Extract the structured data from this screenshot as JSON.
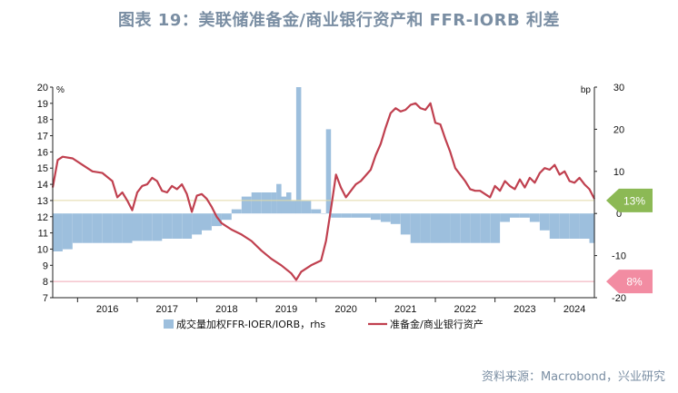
{
  "title": "图表 19：美联储准备金/商业银行资产和 FFR-IORB 利差",
  "source": "资料来源：Macrobond，兴业研究",
  "colors": {
    "bars": "#9dbfdd",
    "line": "#c0404f",
    "badge_13": "#8cb955",
    "badge_8": "#f28ca2",
    "ref_13": "#e2d9a6",
    "ref_8": "#f1a8b5"
  },
  "badges": {
    "b13": "13%",
    "b8": "8%"
  },
  "chart_data": {
    "type": "bar",
    "title": "",
    "left_axis": {
      "unit": "%",
      "min": 7,
      "max": 20,
      "ticks": [
        7,
        8,
        9,
        10,
        11,
        12,
        13,
        14,
        15,
        16,
        17,
        18,
        19,
        20
      ]
    },
    "right_axis": {
      "unit": "bp",
      "min": -20,
      "max": 30,
      "ticks": [
        -20,
        -10,
        0,
        10,
        20,
        30
      ]
    },
    "x_axis": {
      "start": "2015-08",
      "end": "2024-09",
      "labels": [
        "2016",
        "2017",
        "2018",
        "2019",
        "2020",
        "2021",
        "2022",
        "2023",
        "2024"
      ]
    },
    "reference_lines": [
      {
        "axis": "left",
        "value": 13,
        "label": "13%"
      },
      {
        "axis": "left",
        "value": 8,
        "label": "8%"
      }
    ],
    "series": [
      {
        "name": "成交量加权FFR-IOER/IORB，rhs",
        "type": "bar",
        "axis": "right",
        "points": [
          [
            "2015-08",
            -9
          ],
          [
            "2015-10",
            -8.5
          ],
          [
            "2015-12",
            -7
          ],
          [
            "2016-02",
            -7
          ],
          [
            "2016-04",
            -7
          ],
          [
            "2016-06",
            -7
          ],
          [
            "2016-08",
            -7
          ],
          [
            "2016-10",
            -7
          ],
          [
            "2016-12",
            -6.5
          ],
          [
            "2017-02",
            -6.5
          ],
          [
            "2017-04",
            -6.5
          ],
          [
            "2017-06",
            -6
          ],
          [
            "2017-08",
            -6
          ],
          [
            "2017-10",
            -6
          ],
          [
            "2017-12",
            -5
          ],
          [
            "2018-02",
            -4
          ],
          [
            "2018-04",
            -3
          ],
          [
            "2018-06",
            -1.5
          ],
          [
            "2018-08",
            1
          ],
          [
            "2018-10",
            4
          ],
          [
            "2018-12",
            5
          ],
          [
            "2019-02",
            5
          ],
          [
            "2019-04",
            5
          ],
          [
            "2019-05",
            7
          ],
          [
            "2019-06",
            4
          ],
          [
            "2019-07",
            5
          ],
          [
            "2019-08",
            3
          ],
          [
            "2019-09",
            30
          ],
          [
            "2019-10",
            3
          ],
          [
            "2019-12",
            1
          ],
          [
            "2020-02",
            0
          ],
          [
            "2020-03",
            20
          ],
          [
            "2020-04",
            -1
          ],
          [
            "2020-06",
            -1
          ],
          [
            "2020-08",
            -1
          ],
          [
            "2020-10",
            -1
          ],
          [
            "2020-12",
            -1.5
          ],
          [
            "2021-02",
            -2
          ],
          [
            "2021-04",
            -2.5
          ],
          [
            "2021-06",
            -5
          ],
          [
            "2021-08",
            -7
          ],
          [
            "2021-10",
            -7
          ],
          [
            "2021-12",
            -7
          ],
          [
            "2022-02",
            -7
          ],
          [
            "2022-04",
            -7
          ],
          [
            "2022-06",
            -7
          ],
          [
            "2022-08",
            -7
          ],
          [
            "2022-10",
            -7
          ],
          [
            "2022-12",
            -7
          ],
          [
            "2023-02",
            -2
          ],
          [
            "2023-04",
            -1
          ],
          [
            "2023-06",
            -1
          ],
          [
            "2023-08",
            -2
          ],
          [
            "2023-10",
            -4
          ],
          [
            "2023-12",
            -6
          ],
          [
            "2024-02",
            -6
          ],
          [
            "2024-04",
            -6
          ],
          [
            "2024-06",
            -6
          ],
          [
            "2024-08",
            -7
          ],
          [
            "2024-09",
            -7
          ]
        ]
      },
      {
        "name": "准备金/商业银行资产",
        "type": "line",
        "axis": "left",
        "points": [
          [
            "2015-08",
            13.8
          ],
          [
            "2015-09",
            15.5
          ],
          [
            "2015-10",
            15.7
          ],
          [
            "2015-12",
            15.6
          ],
          [
            "2016-02",
            15.2
          ],
          [
            "2016-04",
            14.8
          ],
          [
            "2016-06",
            14.7
          ],
          [
            "2016-08",
            14.2
          ],
          [
            "2016-09",
            13.2
          ],
          [
            "2016-10",
            13.5
          ],
          [
            "2016-11",
            13.0
          ],
          [
            "2016-12",
            12.4
          ],
          [
            "2017-01",
            13.5
          ],
          [
            "2017-02",
            13.9
          ],
          [
            "2017-03",
            14.0
          ],
          [
            "2017-04",
            14.4
          ],
          [
            "2017-05",
            14.2
          ],
          [
            "2017-06",
            13.6
          ],
          [
            "2017-07",
            13.5
          ],
          [
            "2017-08",
            13.9
          ],
          [
            "2017-09",
            13.7
          ],
          [
            "2017-10",
            14.0
          ],
          [
            "2017-11",
            13.4
          ],
          [
            "2017-12",
            12.3
          ],
          [
            "2018-01",
            13.3
          ],
          [
            "2018-02",
            13.4
          ],
          [
            "2018-03",
            13.1
          ],
          [
            "2018-04",
            12.6
          ],
          [
            "2018-05",
            12.0
          ],
          [
            "2018-06",
            11.6
          ],
          [
            "2018-08",
            11.2
          ],
          [
            "2018-10",
            10.9
          ],
          [
            "2018-12",
            10.5
          ],
          [
            "2019-02",
            9.9
          ],
          [
            "2019-04",
            9.4
          ],
          [
            "2019-06",
            9.0
          ],
          [
            "2019-08",
            8.5
          ],
          [
            "2019-09",
            8.1
          ],
          [
            "2019-10",
            8.6
          ],
          [
            "2019-12",
            9.0
          ],
          [
            "2020-02",
            9.3
          ],
          [
            "2020-03",
            10.5
          ],
          [
            "2020-04",
            12.5
          ],
          [
            "2020-05",
            14.6
          ],
          [
            "2020-06",
            13.8
          ],
          [
            "2020-07",
            13.2
          ],
          [
            "2020-08",
            13.6
          ],
          [
            "2020-09",
            14.0
          ],
          [
            "2020-10",
            14.2
          ],
          [
            "2020-12",
            14.9
          ],
          [
            "2021-01",
            15.8
          ],
          [
            "2021-02",
            16.5
          ],
          [
            "2021-03",
            17.5
          ],
          [
            "2021-04",
            18.4
          ],
          [
            "2021-05",
            18.7
          ],
          [
            "2021-06",
            18.5
          ],
          [
            "2021-07",
            18.6
          ],
          [
            "2021-08",
            18.9
          ],
          [
            "2021-09",
            19.0
          ],
          [
            "2021-10",
            18.7
          ],
          [
            "2021-11",
            18.6
          ],
          [
            "2021-12",
            19.0
          ],
          [
            "2022-01",
            17.8
          ],
          [
            "2022-02",
            17.7
          ],
          [
            "2022-03",
            16.8
          ],
          [
            "2022-04",
            16.0
          ],
          [
            "2022-05",
            15.0
          ],
          [
            "2022-06",
            14.6
          ],
          [
            "2022-07",
            14.2
          ],
          [
            "2022-08",
            13.7
          ],
          [
            "2022-09",
            13.6
          ],
          [
            "2022-10",
            13.6
          ],
          [
            "2022-11",
            13.4
          ],
          [
            "2022-12",
            13.2
          ],
          [
            "2023-01",
            13.9
          ],
          [
            "2023-02",
            13.6
          ],
          [
            "2023-03",
            14.2
          ],
          [
            "2023-04",
            13.9
          ],
          [
            "2023-05",
            13.7
          ],
          [
            "2023-06",
            14.3
          ],
          [
            "2023-07",
            13.8
          ],
          [
            "2023-08",
            14.4
          ],
          [
            "2023-09",
            14.1
          ],
          [
            "2023-10",
            14.7
          ],
          [
            "2023-11",
            15.0
          ],
          [
            "2023-12",
            14.9
          ],
          [
            "2024-01",
            15.2
          ],
          [
            "2024-02",
            14.6
          ],
          [
            "2024-03",
            14.8
          ],
          [
            "2024-04",
            14.2
          ],
          [
            "2024-05",
            14.1
          ],
          [
            "2024-06",
            14.4
          ],
          [
            "2024-07",
            14.0
          ],
          [
            "2024-08",
            13.7
          ],
          [
            "2024-09",
            13.1
          ]
        ]
      }
    ]
  }
}
